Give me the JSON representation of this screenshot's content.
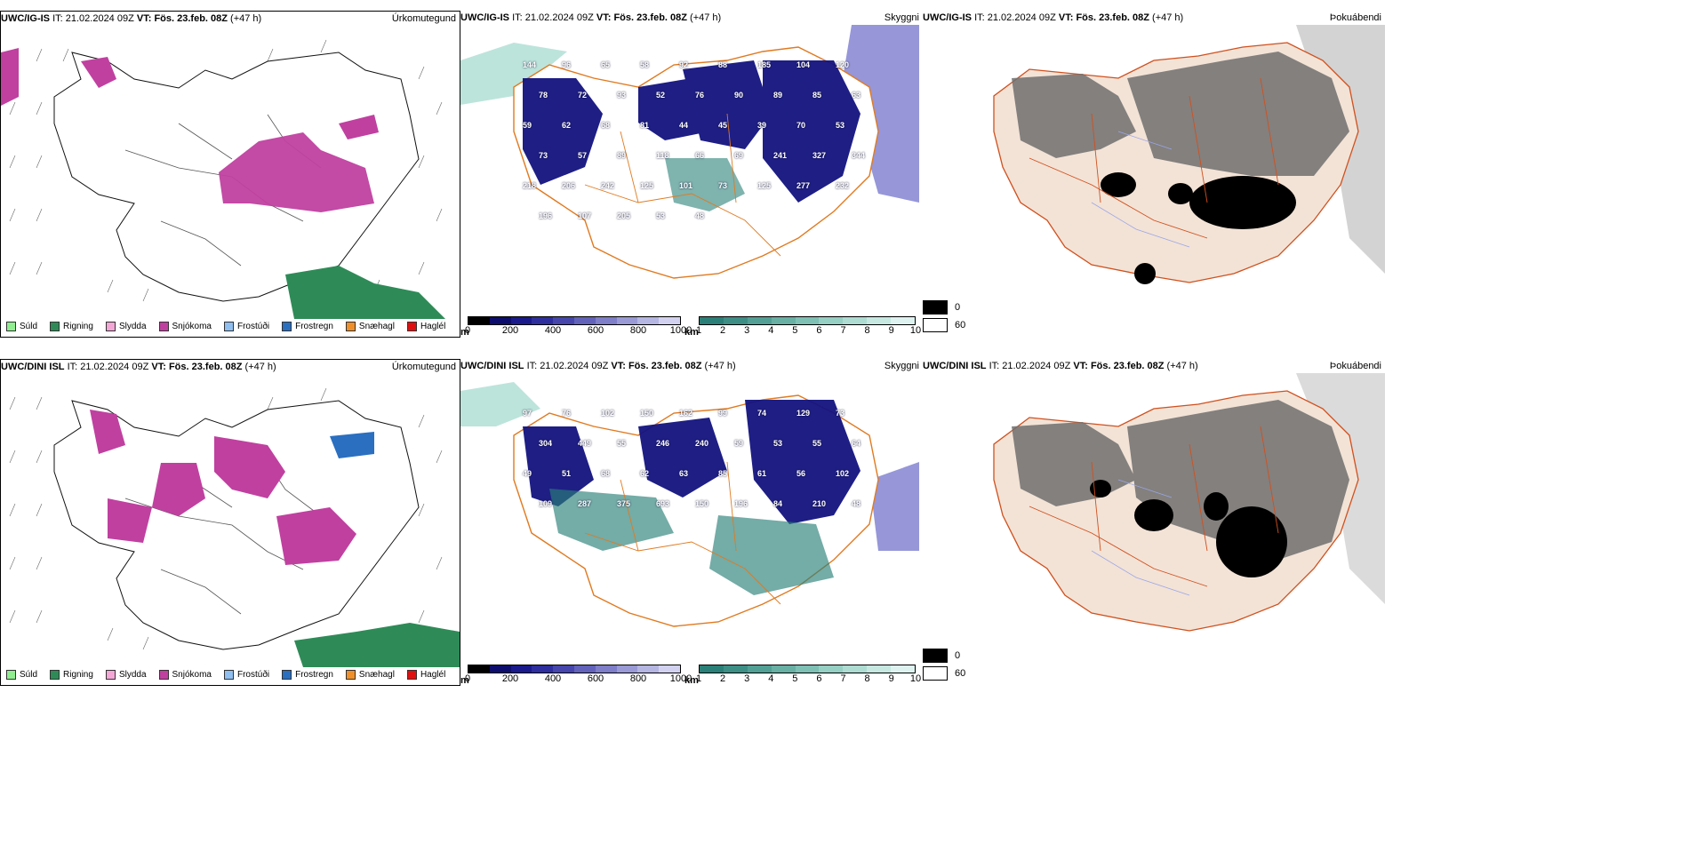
{
  "rows": [
    {
      "model": "UWC/IG-IS",
      "it_label": "IT:",
      "it_value": "21.02.2024 09Z",
      "vt_label": "VT:",
      "vt_value": "Fös. 23.feb. 08Z",
      "lead": "(+47 h)"
    },
    {
      "model": "UWC/DINI ISL",
      "it_label": "IT:",
      "it_value": "21.02.2024 09Z",
      "vt_label": "VT:",
      "vt_value": "Fös. 23.feb. 08Z",
      "lead": "(+47 h)"
    }
  ],
  "panels": {
    "precip_title": "Úrkomutegund",
    "cloud_title": "Skyggni",
    "fog_title": "Þokuábendi"
  },
  "precip_legend": [
    {
      "label": "Súld",
      "color": "#90ee90"
    },
    {
      "label": "Rigning",
      "color": "#2e8b57"
    },
    {
      "label": "Slydda",
      "color": "#f4a6d7"
    },
    {
      "label": "Snjókoma",
      "color": "#c040a0"
    },
    {
      "label": "Frostúði",
      "color": "#8fbef0"
    },
    {
      "label": "Frostregn",
      "color": "#2a6fc0"
    },
    {
      "label": "Snæhagl",
      "color": "#f0902a"
    },
    {
      "label": "Haglél",
      "color": "#e01010"
    }
  ],
  "height_scale": {
    "unit": "m",
    "ticks": [
      "0",
      "200",
      "400",
      "600",
      "800",
      "1000"
    ],
    "colors": [
      "#000000",
      "#0d0d6e",
      "#1a1a8c",
      "#2e2e9e",
      "#4646ad",
      "#6262bb",
      "#7e7ec9",
      "#9a9ad6",
      "#b6b6e3",
      "#d2d2f0"
    ]
  },
  "km_scale": {
    "unit": "km",
    "ticks": [
      "1",
      "2",
      "3",
      "4",
      "5",
      "6",
      "7",
      "8",
      "9",
      "10"
    ],
    "colors": [
      "#2a8078",
      "#3d8f86",
      "#52a095",
      "#68b0a4",
      "#7ec0b4",
      "#96cfc4",
      "#aedcd3",
      "#c6e8e1",
      "#deF3ef"
    ]
  },
  "fog_legend": [
    {
      "label": "0",
      "color": "#000000"
    },
    {
      "label": "60",
      "color": "#ffffff"
    }
  ],
  "cloud_labels_top": [
    "144",
    "96",
    "65",
    "58",
    "92",
    "88",
    "185",
    "104",
    "120",
    "78",
    "72",
    "93",
    "52",
    "76",
    "90",
    "89",
    "85",
    "63",
    "59",
    "62",
    "68",
    "81",
    "44",
    "45",
    "39",
    "70",
    "53",
    "73",
    "57",
    "89",
    "118",
    "66",
    "69",
    "241",
    "327",
    "344",
    "218",
    "206",
    "242",
    "125",
    "101",
    "73",
    "125",
    "277",
    "232",
    "196",
    "107",
    "205",
    "53",
    "48"
  ],
  "cloud_labels_bottom": [
    "97",
    "76",
    "102",
    "150",
    "162",
    "99",
    "74",
    "129",
    "73",
    "304",
    "449",
    "55",
    "246",
    "240",
    "59",
    "53",
    "55",
    "64",
    "49",
    "51",
    "68",
    "62",
    "63",
    "85",
    "61",
    "56",
    "102",
    "109",
    "287",
    "375",
    "693",
    "150",
    "196",
    "84",
    "210",
    "48"
  ]
}
